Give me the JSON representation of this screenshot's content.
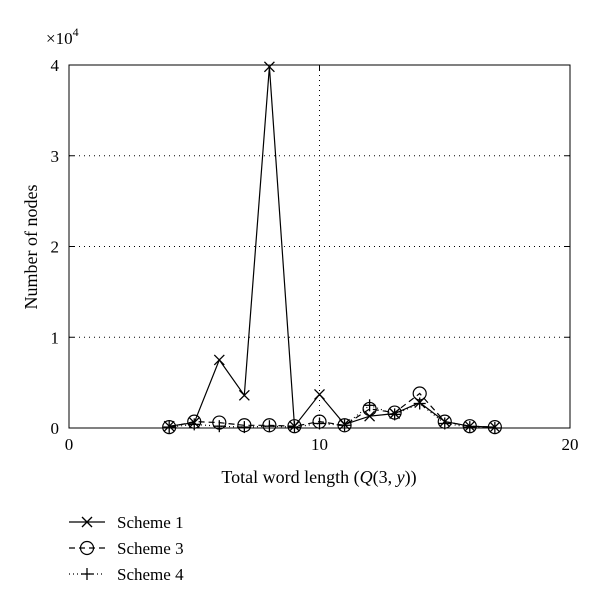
{
  "chart_data": {
    "type": "line",
    "xlabel": {
      "prefix": "Total word length (",
      "italic": "Q",
      "middle": "(3, ",
      "italic2": "y",
      "suffix": "))"
    },
    "ylabel": "Number of nodes",
    "y_multiplier_base": "×10",
    "y_multiplier_exp": "4",
    "xlim": [
      0,
      20
    ],
    "ylim": [
      0,
      4
    ],
    "x_ticks": [
      "0",
      "10",
      "20"
    ],
    "y_ticks": [
      "0",
      "1",
      "2",
      "3",
      "4"
    ],
    "grid": true,
    "legend_position": "below-left",
    "series": [
      {
        "name": "Scheme 1",
        "marker": "x",
        "line_style": "solid",
        "color": "#000000",
        "x": [
          4,
          5,
          6,
          7,
          8,
          9,
          10,
          11,
          12,
          13,
          14,
          15,
          16,
          17
        ],
        "y": [
          0.02,
          0.06,
          0.75,
          0.36,
          3.98,
          0.02,
          0.37,
          0.04,
          0.13,
          0.16,
          0.28,
          0.07,
          0.02,
          0.01
        ]
      },
      {
        "name": "Scheme 3",
        "marker": "circle",
        "line_style": "dashed",
        "color": "#000000",
        "x": [
          4,
          5,
          6,
          7,
          8,
          9,
          10,
          11,
          12,
          13,
          14,
          15,
          16,
          17
        ],
        "y": [
          0.01,
          0.07,
          0.06,
          0.03,
          0.03,
          0.02,
          0.07,
          0.03,
          0.21,
          0.17,
          0.38,
          0.07,
          0.02,
          0.01
        ]
      },
      {
        "name": "Scheme 4",
        "marker": "plus",
        "line_style": "dotted",
        "color": "#000000",
        "x": [
          4,
          5,
          6,
          7,
          8,
          9,
          10,
          11,
          12,
          13,
          14,
          15,
          16,
          17
        ],
        "y": [
          0.01,
          0.04,
          0.02,
          0.01,
          0.02,
          0.01,
          0.05,
          0.03,
          0.25,
          0.15,
          0.27,
          0.05,
          0.01,
          0.0
        ]
      }
    ]
  }
}
